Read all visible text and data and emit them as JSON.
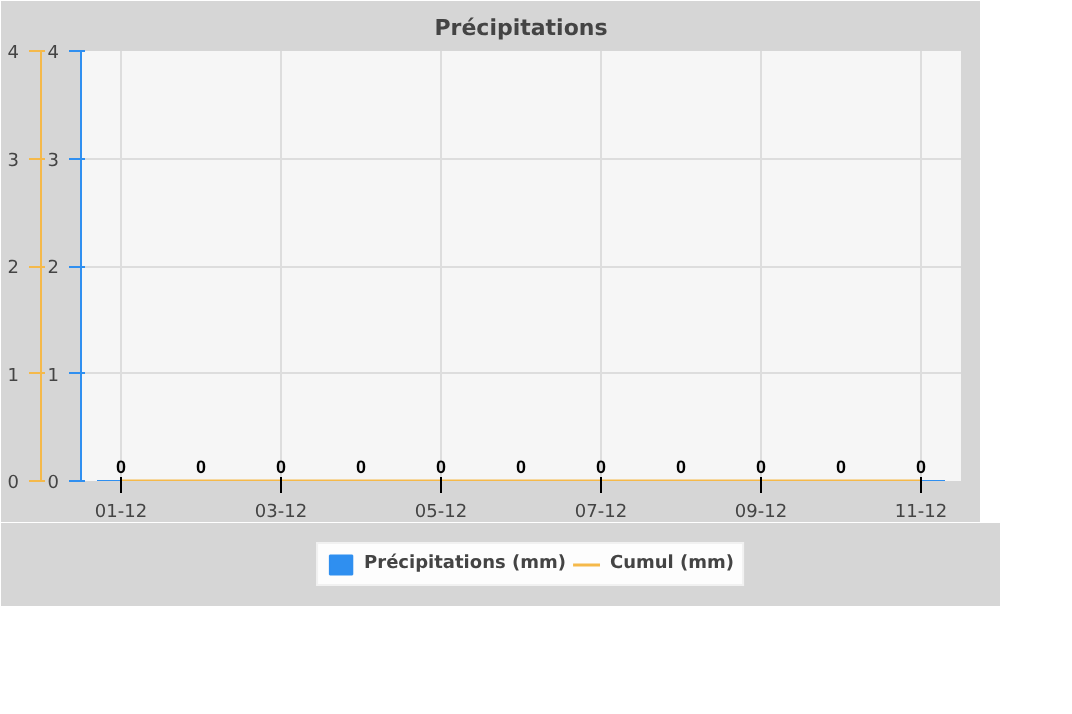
{
  "chart_data": {
    "type": "bar",
    "title": "Précipitations",
    "categories": [
      "01-12",
      null,
      "03-12",
      null,
      "05-12",
      null,
      "07-12",
      null,
      "09-12",
      null,
      "11-12"
    ],
    "series": [
      {
        "name": "Précipitations (mm)",
        "color": "#2f8ff0",
        "values": [
          0,
          0,
          0,
          0,
          0,
          0,
          0,
          0,
          0,
          0,
          0
        ],
        "value_labels": [
          "0",
          "0",
          "0",
          "0",
          "0",
          "0",
          "0",
          "0",
          "0",
          "0",
          "0"
        ]
      },
      {
        "name": "Cumul (mm)",
        "type": "line",
        "axis": "y2",
        "color": "#f5b94a",
        "values": [
          0,
          0,
          0,
          0,
          0,
          0,
          0,
          0,
          0,
          0,
          0
        ]
      }
    ],
    "ylim": [
      0,
      4
    ],
    "yticks": [
      0,
      1,
      2,
      3,
      4
    ],
    "y2lim": [
      0,
      4
    ],
    "y2ticks": [
      0,
      1,
      2,
      3,
      4
    ],
    "grid": true,
    "legend": "bottom",
    "marker": "none"
  }
}
